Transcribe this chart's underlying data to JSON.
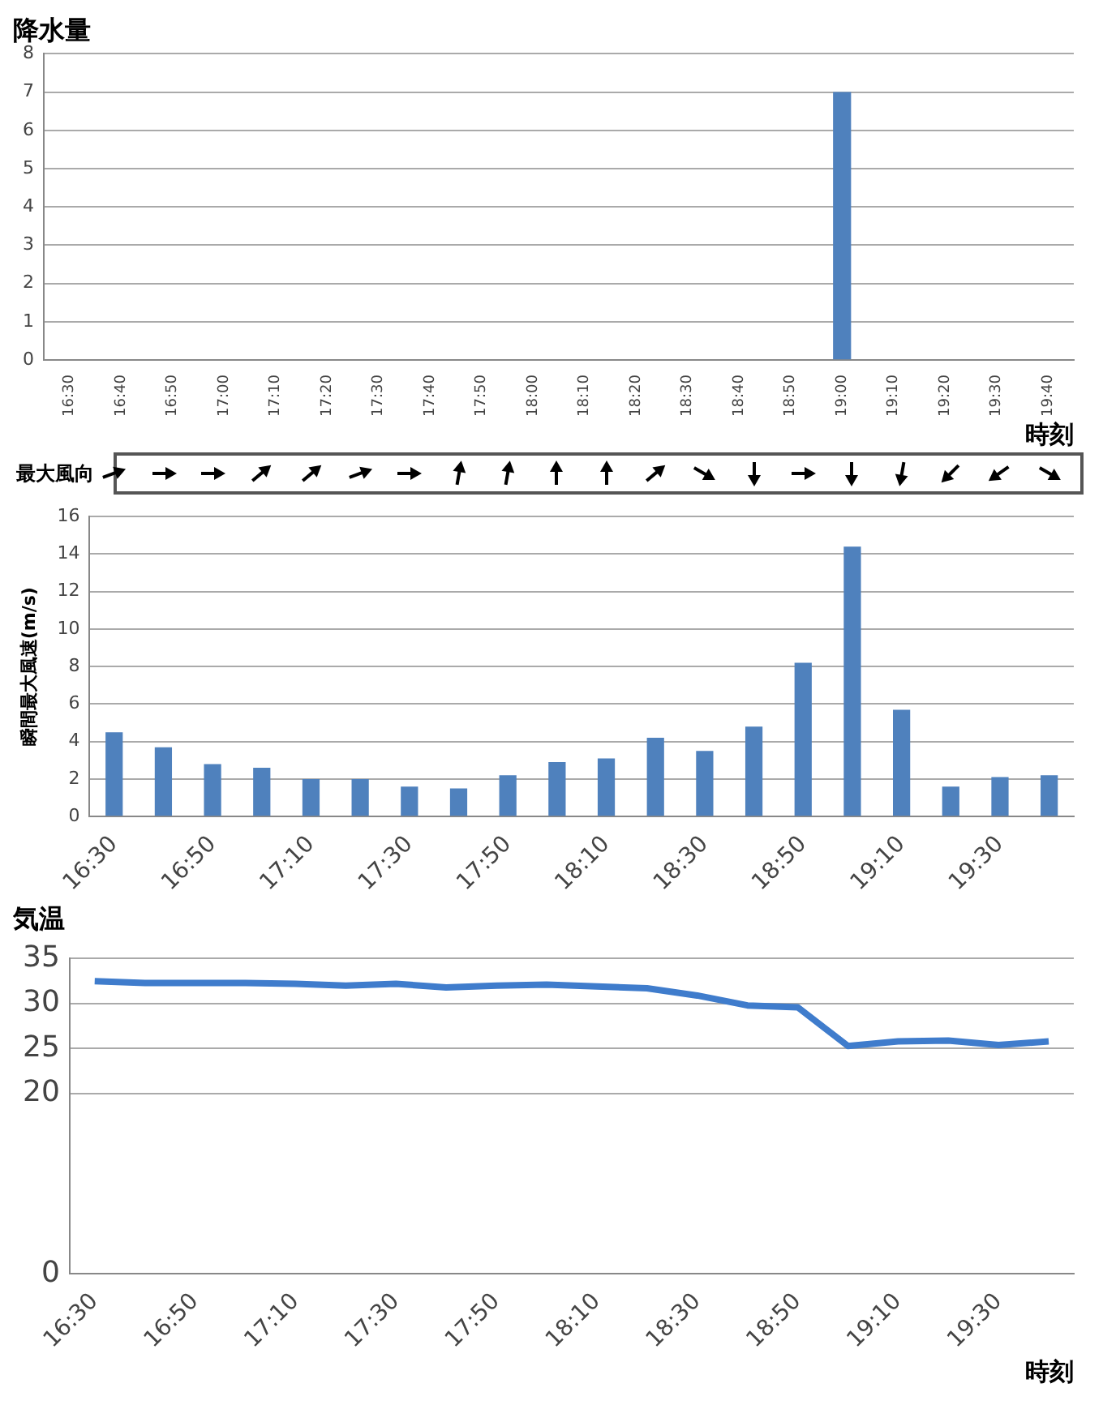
{
  "chart_data": [
    {
      "type": "bar",
      "title": "降水量",
      "xlabel": "時刻",
      "categories": [
        "16:30",
        "16:40",
        "16:50",
        "17:00",
        "17:10",
        "17:20",
        "17:30",
        "17:40",
        "17:50",
        "18:00",
        "18:10",
        "18:20",
        "18:30",
        "18:40",
        "18:50",
        "19:00",
        "19:10",
        "19:20",
        "19:30",
        "19:40"
      ],
      "values": [
        0,
        0,
        0,
        0,
        0,
        0,
        0,
        0,
        0,
        0,
        0,
        0,
        0,
        0,
        0,
        7,
        0,
        0,
        0,
        0
      ],
      "color": "#4f81bd",
      "ylim": [
        0,
        8
      ],
      "yticks": [
        0,
        1,
        2,
        3,
        4,
        5,
        6,
        7,
        8
      ],
      "grid": "y",
      "legend": false
    },
    {
      "type": "bar",
      "ylabel": "瞬間最大風速(m/s)",
      "annotations": [
        "最大風向"
      ],
      "categories": [
        "16:30",
        null,
        "16:50",
        null,
        "17:10",
        null,
        "17:30",
        null,
        "17:50",
        null,
        "18:10",
        null,
        "18:30",
        null,
        "18:50",
        null,
        "19:10",
        null,
        "19:30",
        null
      ],
      "values": [
        4.5,
        3.7,
        2.8,
        2.6,
        2.0,
        2.0,
        1.6,
        1.5,
        2.2,
        2.9,
        3.1,
        4.2,
        3.5,
        4.8,
        8.2,
        14.4,
        5.7,
        1.6,
        2.1,
        2.2
      ],
      "color": "#4f81bd",
      "ylim": [
        0,
        16
      ],
      "yticks": [
        0,
        2,
        4,
        6,
        8,
        10,
        12,
        14,
        16
      ],
      "grid": "y",
      "legend": false
    },
    {
      "type": "line",
      "title": "気温",
      "xlabel": "時刻",
      "categories": [
        "16:30",
        null,
        "16:50",
        null,
        "17:10",
        null,
        "17:30",
        null,
        "17:50",
        null,
        "18:10",
        null,
        "18:30",
        null,
        "18:50",
        null,
        "19:10",
        null,
        "19:30",
        null
      ],
      "values": [
        32.5,
        32.3,
        32.3,
        32.3,
        32.2,
        32.0,
        32.2,
        31.8,
        32.0,
        32.1,
        31.9,
        31.7,
        30.9,
        29.8,
        29.6,
        25.3,
        25.8,
        25.9,
        25.4,
        25.8
      ],
      "color": "#3f7ccc",
      "ylim": [
        0,
        35
      ],
      "yticks": [
        0,
        20,
        25,
        30,
        35
      ],
      "grid": "y",
      "legend": false,
      "marker": "none",
      "line_style": "solid"
    }
  ]
}
